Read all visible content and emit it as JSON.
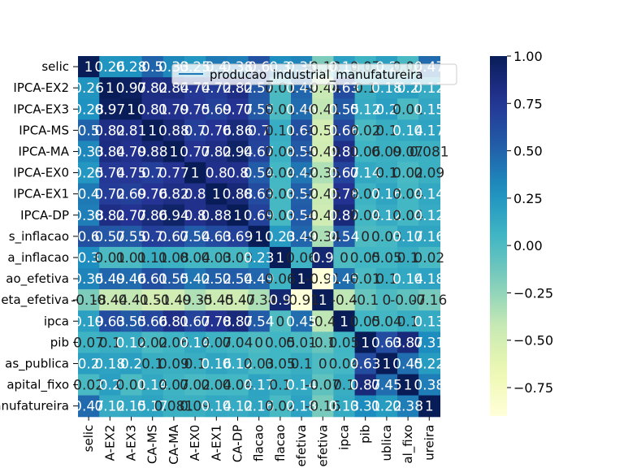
{
  "chart_data": {
    "type": "heatmap",
    "title": "",
    "xlabel": "",
    "ylabel": "",
    "legend": {
      "label": "producao_industrial_manufatureira",
      "placement": "upper-center"
    },
    "colormap": "YlGnBu",
    "vmin": -0.9,
    "vmax": 1.0,
    "colorbar_ticks": [
      "1.00",
      "0.75",
      "0.50",
      "0.25",
      "0.00",
      "−0.25",
      "−0.50",
      "−0.75"
    ],
    "colorbar_tick_values": [
      1.0,
      0.75,
      0.5,
      0.25,
      0.0,
      -0.25,
      -0.5,
      -0.75
    ],
    "row_labels": [
      "selic",
      "IPCA-EX2",
      "IPCA-EX3",
      "IPCA-MS",
      "IPCA-MA",
      "IPCA-EX0",
      "IPCA-EX1",
      "IPCA-DP",
      "s_inflacao",
      "a_inflacao",
      "ao_efetiva",
      "eta_efetiva",
      "ipca",
      "pib",
      "as_publica",
      "apital_fixo",
      "anufatureira"
    ],
    "col_labels": [
      "selic",
      "A-EX2",
      "A-EX3",
      "CA-MS",
      "CA-MA",
      "A-EX0",
      "A-EX1",
      "CA-DP",
      "flacao",
      "flacao",
      "efetiva",
      "efetiva",
      "ipca",
      "pib",
      "ublica",
      "al_fixo",
      "ureira"
    ],
    "values": [
      [
        1.0,
        0.26,
        0.28,
        0.5,
        0.33,
        0.25,
        0.4,
        0.38,
        0.6,
        0.3,
        0.35,
        -0.18,
        0.19,
        0.07,
        0.2,
        0.02,
        0.47
      ],
      [
        0.26,
        1.0,
        0.97,
        0.82,
        0.84,
        0.74,
        0.72,
        0.82,
        0.57,
        0.01,
        0.49,
        -0.44,
        0.63,
        0.1,
        0.18,
        0.2,
        0.12
      ],
      [
        0.28,
        0.97,
        1.0,
        0.81,
        0.79,
        0.75,
        0.69,
        0.77,
        0.55,
        0.01,
        0.46,
        -0.41,
        0.55,
        0.12,
        0.2,
        0.01,
        0.15
      ],
      [
        0.5,
        0.82,
        0.81,
        1.0,
        0.88,
        0.7,
        0.76,
        0.86,
        0.7,
        0.11,
        0.61,
        -0.51,
        0.66,
        0.02,
        0.1,
        0.14,
        0.17
      ],
      [
        0.33,
        0.84,
        0.79,
        0.88,
        1.0,
        0.77,
        0.82,
        0.94,
        0.67,
        0.08,
        0.55,
        -0.49,
        0.81,
        0.06,
        0.09,
        0.07,
        0.081
      ],
      [
        0.25,
        0.74,
        0.75,
        0.7,
        0.77,
        1.0,
        0.8,
        0.8,
        0.54,
        0.04,
        0.42,
        -0.35,
        0.67,
        0.14,
        0.1,
        0.02,
        0.09
      ],
      [
        0.4,
        0.72,
        0.69,
        0.76,
        0.82,
        0.8,
        1.0,
        0.88,
        0.63,
        0.03,
        0.52,
        -0.45,
        0.78,
        0.07,
        0.16,
        0.04,
        0.14
      ],
      [
        0.38,
        0.82,
        0.77,
        0.86,
        0.94,
        0.8,
        0.88,
        1.0,
        0.69,
        0.03,
        0.54,
        -0.47,
        0.87,
        0.04,
        0.12,
        0.04,
        0.12
      ],
      [
        0.6,
        0.57,
        0.55,
        0.7,
        0.67,
        0.54,
        0.63,
        0.69,
        1.0,
        0.23,
        0.49,
        -0.34,
        0.54,
        0.0,
        0.03,
        0.17,
        0.16
      ],
      [
        0.3,
        0.01,
        0.01,
        0.11,
        0.08,
        0.04,
        0.03,
        0.03,
        0.23,
        1.0,
        0.06,
        0.9,
        0.0,
        0.05,
        0.05,
        0.1,
        0.02
      ],
      [
        0.35,
        0.49,
        0.46,
        0.61,
        0.55,
        0.42,
        0.52,
        0.54,
        0.49,
        0.06,
        1.0,
        -0.91,
        0.45,
        0.01,
        0.1,
        0.14,
        0.18
      ],
      [
        -0.18,
        -0.44,
        -0.41,
        -0.51,
        -0.49,
        -0.35,
        -0.45,
        -0.47,
        -0.34,
        0.9,
        -0.91,
        1.0,
        -0.4,
        -0.1,
        0.0,
        -0.07,
        -0.16
      ],
      [
        0.19,
        0.63,
        0.55,
        0.66,
        0.81,
        0.67,
        0.78,
        0.87,
        0.54,
        0.0,
        0.45,
        -0.4,
        1.0,
        0.05,
        0.04,
        0.1,
        0.13
      ],
      [
        0.07,
        0.1,
        0.12,
        0.02,
        0.06,
        0.14,
        0.07,
        0.04,
        0.0,
        0.05,
        0.01,
        -0.1,
        0.05,
        1.0,
        0.63,
        0.87,
        0.31
      ],
      [
        0.2,
        0.18,
        0.2,
        0.1,
        0.09,
        0.1,
        0.16,
        0.12,
        0.03,
        0.05,
        0.1,
        0.0,
        0.04,
        0.63,
        1.0,
        0.45,
        0.22
      ],
      [
        0.02,
        0.2,
        0.01,
        0.14,
        0.07,
        0.02,
        0.04,
        0.04,
        0.17,
        0.1,
        0.14,
        -0.07,
        0.1,
        0.87,
        0.45,
        1.0,
        0.38
      ],
      [
        0.47,
        0.12,
        0.15,
        0.17,
        0.081,
        0.09,
        0.14,
        0.12,
        0.16,
        0.02,
        0.18,
        -0.16,
        0.13,
        0.31,
        0.22,
        0.38,
        1.0
      ]
    ]
  }
}
